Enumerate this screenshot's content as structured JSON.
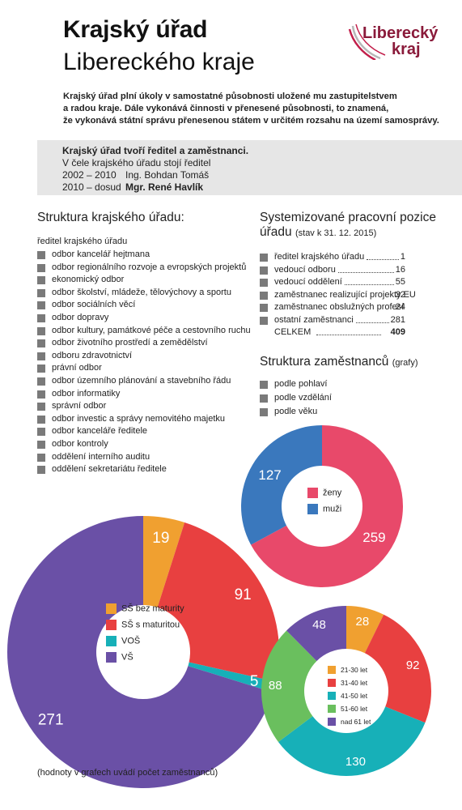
{
  "header": {
    "title_line1": "Krajský úřad",
    "title_line2": "Libereckého kraje",
    "logo_line1": "Liberecký",
    "logo_line2": "kraj"
  },
  "intro": [
    "Krajský úřad plní úkoly v samostatné působnosti uložené mu zastupitelstvem",
    "a radou kraje. Dále vykonává činnosti v přenesené působnosti, to znamená,",
    "že vykonává státní správu přenesenou státem v určitém rozsahu na území samosprávy."
  ],
  "infobox": {
    "heading": "Krajský úřad tvoří ředitel a zaměstnanci.",
    "line2": "V čele krajského úřadu stojí ředitel",
    "rows": [
      {
        "period": "2002 – 2010",
        "name": "Ing. Bohdan Tomáš"
      },
      {
        "period": "2010 – dosud",
        "name": "Mgr. René Havlík"
      }
    ]
  },
  "structure": {
    "heading": "Struktura krajského úřadu:",
    "top": "ředitel krajského úřadu",
    "items": [
      "odbor kancelář hejtmana",
      "odbor regionálního rozvoje a evropských projektů",
      "ekonomický odbor",
      "odbor školství, mládeže, tělovýchovy a sportu",
      "odbor sociálních věcí",
      "odbor dopravy",
      "odbor kultury, památkové péče a cestovního ruchu",
      "odbor životního prostředí a zemědělství",
      "odboru zdravotnictví",
      "právní odbor",
      "odbor územního plánování a stavebního řádu",
      "odbor informatiky",
      "správní odbor",
      "odbor investic a správy nemovitého majetku",
      "odbor kanceláře ředitele",
      "odbor kontroly",
      "oddělení interního auditu",
      "oddělení sekretariátu ředitele"
    ]
  },
  "positions": {
    "heading_line1": "Systemizované pracovní  pozice",
    "heading_line2": "úřadu",
    "heading_note": "(stav k 31. 12. 2015)",
    "rows": [
      {
        "label": "ředitel krajského úřadu",
        "value": "1"
      },
      {
        "label": "vedoucí odboru",
        "value": "16"
      },
      {
        "label": "vedoucí oddělení",
        "value": "55"
      },
      {
        "label": "zaměstnanec realizující projekty EU",
        "value": "32"
      },
      {
        "label": "zaměstnanec obslužných profesí",
        "value": "24"
      },
      {
        "label": "ostatní zaměstnanci",
        "value": "281"
      }
    ],
    "total_label": "CELKEM",
    "total_value": "409"
  },
  "employees": {
    "heading": "Struktura zaměstnanců",
    "heading_note": "(grafy)",
    "items": [
      "podle pohlaví",
      "podle vzdělání",
      "podle věku"
    ]
  },
  "footnote": "(hodnoty v grafech uvádí počet zaměstnanců)",
  "chart_data": [
    {
      "type": "pie",
      "subtype": "donut",
      "categories": [
        "ženy",
        "muži"
      ],
      "values": [
        259,
        127
      ],
      "colors": [
        "#e8496a",
        "#3a78bd"
      ]
    },
    {
      "type": "pie",
      "subtype": "donut",
      "categories": [
        "SŠ bez maturity",
        "SŠ s maturitou",
        "VOŠ",
        "VŠ"
      ],
      "values": [
        19,
        91,
        5,
        271
      ],
      "colors": [
        "#f0a030",
        "#e84040",
        "#17b0b8",
        "#6a50a6"
      ]
    },
    {
      "type": "pie",
      "subtype": "donut",
      "categories": [
        "21-30 let",
        "31-40 let",
        "41-50 let",
        "51-60 let",
        "nad 61 let"
      ],
      "values": [
        28,
        92,
        130,
        88,
        48
      ],
      "colors": [
        "#f0a030",
        "#e84040",
        "#17b0b8",
        "#6abf5e",
        "#6a50a6"
      ]
    }
  ]
}
